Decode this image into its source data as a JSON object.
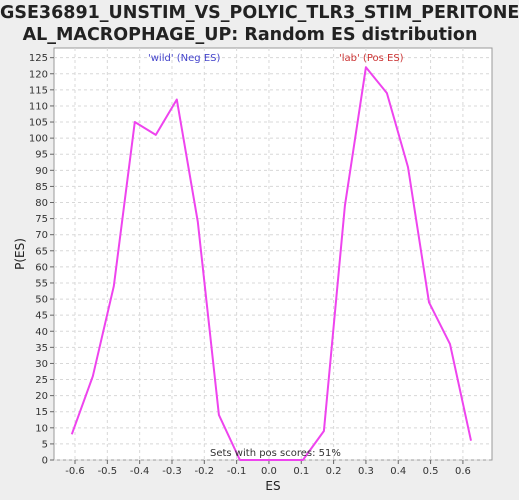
{
  "chart_data": {
    "type": "line",
    "title_lines": [
      "GSE36891_UNSTIM_VS_POLYIC_TLR3_STIM_PERITONE",
      "AL_MACROPHAGE_UP: Random ES distribution"
    ],
    "xlabel": "ES",
    "ylabel": "P(ES)",
    "xlim": [
      -0.665,
      0.69
    ],
    "ylim": [
      0,
      128
    ],
    "x_ticks": [
      "-0.6",
      "-0.5",
      "-0.4",
      "-0.3",
      "-0.2",
      "-0.1",
      "0.0",
      "0.1",
      "0.2",
      "0.3",
      "0.4",
      "0.5",
      "0.6"
    ],
    "y_ticks": [
      "0",
      "5",
      "10",
      "15",
      "20",
      "25",
      "30",
      "35",
      "40",
      "45",
      "50",
      "55",
      "60",
      "65",
      "70",
      "75",
      "80",
      "85",
      "90",
      "95",
      "100",
      "105",
      "110",
      "115",
      "120",
      "125"
    ],
    "grid": true,
    "series": [
      {
        "color": "#ee44ee",
        "x": [
          -0.61,
          -0.545,
          -0.48,
          -0.415,
          -0.35,
          -0.285,
          -0.22,
          -0.155,
          -0.09,
          0.105,
          0.17,
          0.235,
          0.3,
          0.365,
          0.43,
          0.495,
          0.56,
          0.625
        ],
        "y": [
          8,
          26,
          54,
          105,
          101,
          112,
          74,
          14,
          0,
          0,
          9,
          79,
          122,
          114,
          91,
          49,
          36,
          6
        ]
      }
    ],
    "annotations": {
      "neg": {
        "text": "'wild' (Neg ES)",
        "color": "#4444cc"
      },
      "pos": {
        "text": "'lab' (Pos ES)",
        "color": "#cc3333"
      },
      "bottom": {
        "text": "Sets with pos scores: 51%",
        "color": "#333333"
      }
    }
  }
}
